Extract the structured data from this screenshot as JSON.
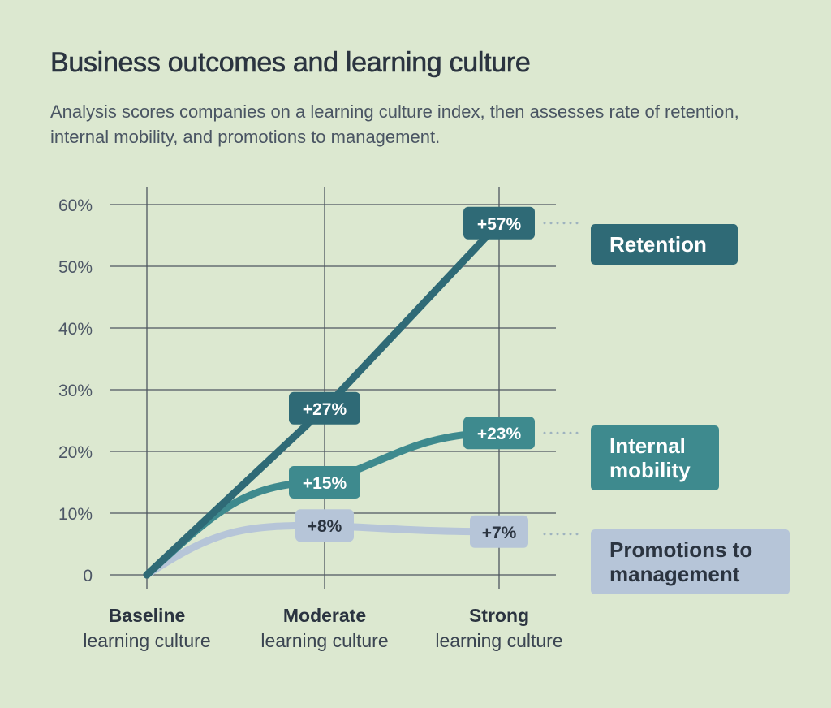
{
  "title": "Business outcomes and learning culture",
  "subtitle": "Analysis scores companies on a learning culture index, then assesses rate of retention, internal mobility, and promotions to management.",
  "colors": {
    "background": "#dce8d0",
    "grid": "#4e5660",
    "retention": "#2f6a76",
    "internal_mobility": "#3e8a8e",
    "promotions": "#b6c5d8",
    "promotions_text": "#2b3440",
    "dots": "#9fb3bf"
  },
  "chart_data": {
    "type": "line",
    "categories": [
      {
        "main": "Baseline",
        "sub": "learning culture"
      },
      {
        "main": "Moderate",
        "sub": "learning culture"
      },
      {
        "main": "Strong",
        "sub": "learning culture"
      }
    ],
    "yticks": [
      0,
      10,
      20,
      30,
      40,
      50,
      60
    ],
    "ytick_labels": [
      "0",
      "10%",
      "20%",
      "30%",
      "40%",
      "50%",
      "60%"
    ],
    "ylim": [
      0,
      60
    ],
    "grid": true,
    "series": [
      {
        "key": "retention",
        "name": "Retention",
        "values": [
          0,
          27,
          57
        ],
        "labels": [
          "",
          "+27%",
          "+57%"
        ]
      },
      {
        "key": "internal_mobility",
        "name": "Internal mobility",
        "name_lines": [
          "Internal",
          "mobility"
        ],
        "values": [
          0,
          15,
          23
        ],
        "labels": [
          "",
          "+15%",
          "+23%"
        ]
      },
      {
        "key": "promotions",
        "name": "Promotions to management",
        "name_lines": [
          "Promotions to",
          "management"
        ],
        "values": [
          0,
          8,
          7
        ],
        "labels": [
          "",
          "+8%",
          "+7%"
        ]
      }
    ]
  }
}
